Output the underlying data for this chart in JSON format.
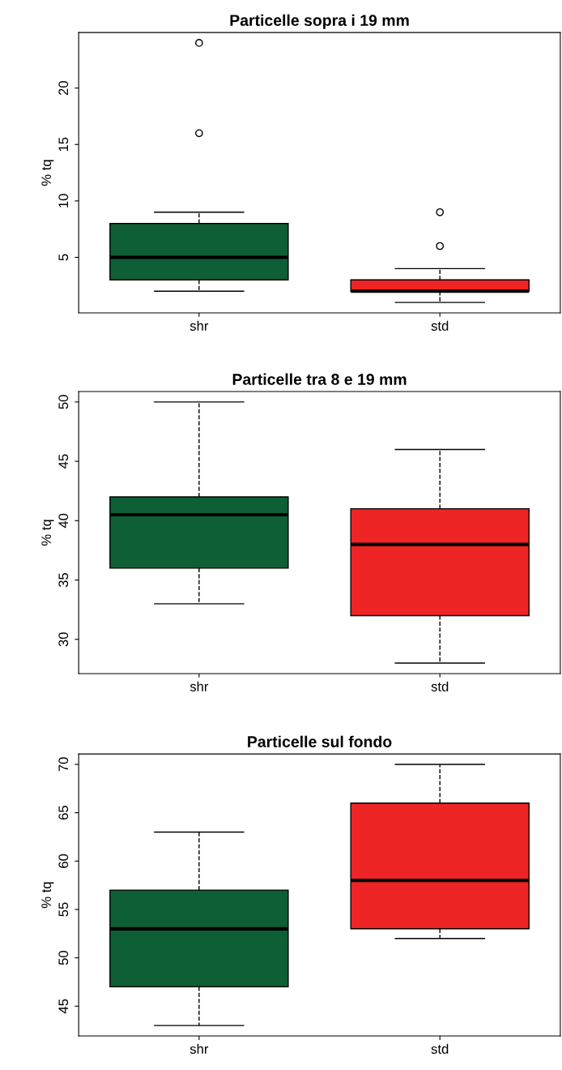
{
  "chart_data": [
    {
      "type": "box",
      "title": "Particelle sopra i 19 mm",
      "ylabel": "% tq",
      "categories": [
        "shr",
        "std"
      ],
      "colors": [
        "#0e5e36",
        "#ee2524"
      ],
      "line_style": "dashed",
      "ylim": [
        0.08,
        24.92
      ],
      "yticks": [
        5,
        10,
        15,
        20
      ],
      "boxes": [
        {
          "low": 2,
          "q1": 3,
          "median": 5,
          "q3": 8,
          "high": 9,
          "outliers": [
            16,
            24
          ]
        },
        {
          "low": 1,
          "q1": 2,
          "median": 2,
          "q3": 3,
          "high": 4,
          "outliers": [
            6,
            9
          ]
        }
      ]
    },
    {
      "type": "box",
      "title": "Particelle tra 8 e 19 mm",
      "ylabel": "% tq",
      "categories": [
        "shr",
        "std"
      ],
      "colors": [
        "#0e5e36",
        "#ee2524"
      ],
      "line_style": "dashed",
      "ylim": [
        27.12,
        50.88
      ],
      "yticks": [
        30,
        35,
        40,
        45,
        50
      ],
      "boxes": [
        {
          "low": 33,
          "q1": 36,
          "median": 40.5,
          "q3": 42,
          "high": 50
        },
        {
          "low": 28,
          "q1": 32,
          "median": 38,
          "q3": 41,
          "high": 46
        }
      ]
    },
    {
      "type": "box",
      "title": "Particelle sul fondo",
      "ylabel": "% tq",
      "categories": [
        "shr",
        "std"
      ],
      "colors": [
        "#0e5e36",
        "#ee2524"
      ],
      "line_style": "dashed",
      "ylim": [
        41.92,
        71.08
      ],
      "yticks": [
        45,
        50,
        55,
        60,
        65,
        70
      ],
      "boxes": [
        {
          "low": 43,
          "q1": 47,
          "median": 53,
          "q3": 57,
          "high": 63
        },
        {
          "low": 52,
          "q1": 53,
          "median": 58,
          "q3": 66,
          "high": 70
        }
      ]
    }
  ]
}
